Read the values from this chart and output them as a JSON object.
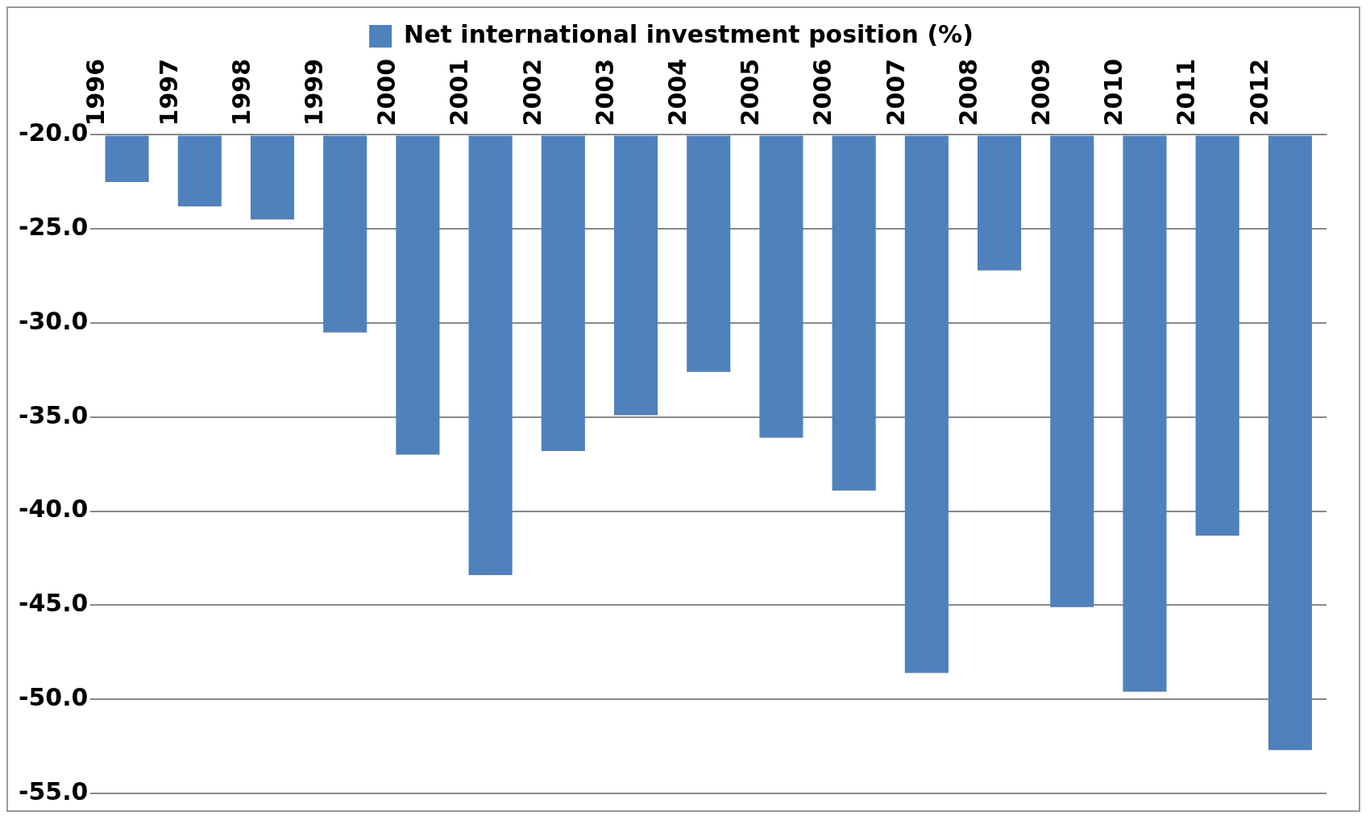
{
  "chart_data": {
    "type": "bar",
    "categories": [
      "1996",
      "1997",
      "1998",
      "1999",
      "2000",
      "2001",
      "2002",
      "2003",
      "2004",
      "2005",
      "2006",
      "2007",
      "2008",
      "2009",
      "2010",
      "2011",
      "2012"
    ],
    "series": [
      {
        "name": "Net international investment position (%)",
        "color": "#4f81bd",
        "values": [
          -22.5,
          -23.8,
          -24.5,
          -30.5,
          -37.0,
          -43.4,
          -36.8,
          -34.9,
          -32.6,
          -36.1,
          -38.9,
          -48.6,
          -27.2,
          -45.1,
          -49.6,
          -41.3,
          -52.7
        ]
      }
    ],
    "ylim": [
      -55,
      -20
    ],
    "yticks": [
      {
        "value": -55,
        "label": "-55.0"
      },
      {
        "value": -50,
        "label": "-50.0"
      },
      {
        "value": -45,
        "label": "-45.0"
      },
      {
        "value": -40,
        "label": "-40.0"
      },
      {
        "value": -35,
        "label": "-35.0"
      },
      {
        "value": -30,
        "label": "-30.0"
      },
      {
        "value": -25,
        "label": "-25.0"
      },
      {
        "value": -20,
        "label": "-20.0"
      }
    ],
    "grid": "y",
    "legend": "top"
  }
}
